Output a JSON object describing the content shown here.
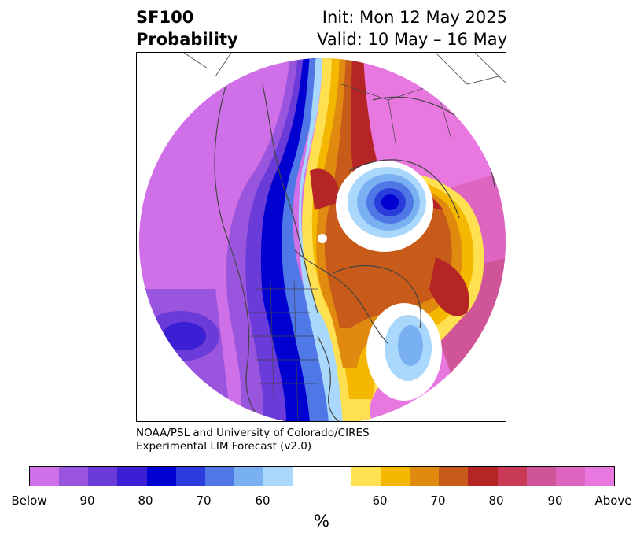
{
  "header": {
    "title_line1": "SF100",
    "title_line2": "Probability",
    "init_line": "Init: Mon 12 May 2025",
    "valid_line": "Valid: 10 May – 16 May"
  },
  "credit": {
    "line1": "NOAA/PSL and University of Colorado/CIRES",
    "line2": "Experimental LIM Forecast (v2.0)"
  },
  "colorbar": {
    "colors": [
      "#d070e8",
      "#9a55df",
      "#6a3bd9",
      "#3a1fd4",
      "#0000d0",
      "#2a3ddc",
      "#4f78e6",
      "#78b0f2",
      "#a9d8fc",
      "#ffffff",
      "#ffffff",
      "#ffe050",
      "#f5b800",
      "#e08a10",
      "#c85a1a",
      "#b52526",
      "#c83a55",
      "#cf5598",
      "#dd65c0",
      "#e878e0"
    ],
    "labels": [
      "Below",
      "90",
      "80",
      "70",
      "60",
      "60",
      "70",
      "80",
      "90",
      "Above"
    ],
    "unit": "%"
  }
}
